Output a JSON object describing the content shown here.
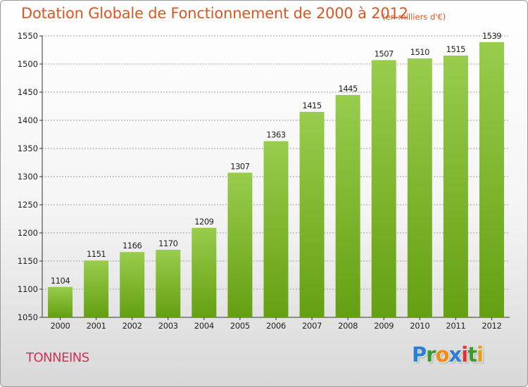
{
  "title": "Dotation Globale de Fonctionnement de 2000 à 2012",
  "unit_note": "(en milliers d'€)",
  "city": "TONNEINS",
  "brand": {
    "letters": [
      {
        "ch": "P",
        "color": "#2a7fd4"
      },
      {
        "ch": "r",
        "color": "#3b9a2a"
      },
      {
        "ch": "o",
        "color": "#f08c12"
      },
      {
        "ch": "x",
        "color": "#2a7fd4"
      },
      {
        "ch": "i",
        "color": "#e23030"
      },
      {
        "ch": "t",
        "color": "#3b9a2a"
      },
      {
        "ch": "i",
        "color": "#e8a010"
      }
    ]
  },
  "colors": {
    "bar_top": "#99cc4d",
    "bar_bottom": "#64a012",
    "axis": "#333333",
    "grid": "#a0a0a0",
    "text": "#222222"
  },
  "chart_data": {
    "type": "bar",
    "categories": [
      "2000",
      "2001",
      "2002",
      "2003",
      "2004",
      "2005",
      "2006",
      "2007",
      "2008",
      "2009",
      "2010",
      "2011",
      "2012"
    ],
    "values": [
      1104,
      1151,
      1166,
      1170,
      1209,
      1307,
      1363,
      1415,
      1445,
      1507,
      1510,
      1515,
      1539
    ],
    "ylim": [
      1050,
      1550
    ],
    "yticks": [
      1050,
      1100,
      1150,
      1200,
      1250,
      1300,
      1350,
      1400,
      1450,
      1500,
      1550
    ],
    "grid": true
  }
}
